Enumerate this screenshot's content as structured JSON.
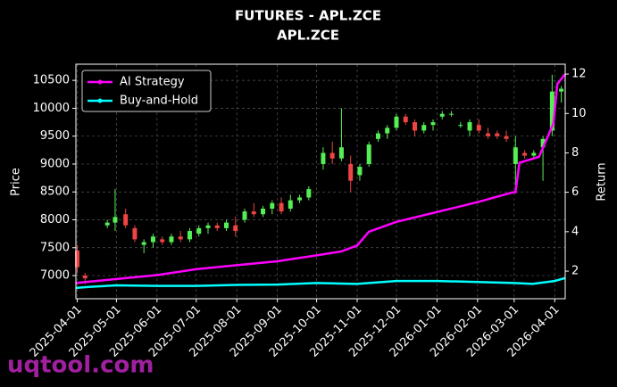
{
  "chart_data": {
    "type": "candlestick",
    "title": "FUTURES - APL.ZCE",
    "subtitle": "APL.ZCE",
    "ylabel": "Price",
    "y2label": "Return",
    "watermark": "uqtool.com",
    "grid": true,
    "legend": "upper left",
    "up_color": "#55ee55",
    "down_color": "#ee4444",
    "xlim": [
      "2025-03-31",
      "2026-04-09"
    ],
    "xticks": [
      "2025-04-01",
      "2025-05-01",
      "2025-06-01",
      "2025-07-01",
      "2025-08-01",
      "2025-09-01",
      "2025-10-01",
      "2025-11-01",
      "2025-12-01",
      "2026-01-01",
      "2026-02-01",
      "2026-03-01",
      "2026-04-01"
    ],
    "ylim": [
      6585,
      10790
    ],
    "yticks": [
      7000,
      7500,
      8000,
      8500,
      9000,
      9500,
      10000,
      10500
    ],
    "y2lim": [
      0.6,
      12.5
    ],
    "y2ticks": [
      2,
      4,
      6,
      8,
      10,
      12
    ],
    "x": [
      "2025-04-01",
      "2025-04-07",
      "2025-04-24",
      "2025-04-30",
      "2025-05-08",
      "2025-05-15",
      "2025-05-22",
      "2025-05-29",
      "2025-06-05",
      "2025-06-12",
      "2025-06-19",
      "2025-06-26",
      "2025-07-03",
      "2025-07-10",
      "2025-07-17",
      "2025-07-24",
      "2025-07-31",
      "2025-08-07",
      "2025-08-14",
      "2025-08-21",
      "2025-08-28",
      "2025-09-04",
      "2025-09-11",
      "2025-09-18",
      "2025-09-25",
      "2025-10-06",
      "2025-10-13",
      "2025-10-20",
      "2025-10-27",
      "2025-11-03",
      "2025-11-10",
      "2025-11-17",
      "2025-11-24",
      "2025-12-01",
      "2025-12-08",
      "2025-12-15",
      "2025-12-22",
      "2025-12-29",
      "2026-01-05",
      "2026-01-12",
      "2026-01-19",
      "2026-01-26",
      "2026-02-02",
      "2026-02-09",
      "2026-02-16",
      "2026-02-23",
      "2026-03-02",
      "2026-03-09",
      "2026-03-16",
      "2026-03-23",
      "2026-03-30",
      "2026-04-06"
    ],
    "open": [
      7450,
      7000,
      7900,
      7950,
      8100,
      7850,
      7550,
      7600,
      7650,
      7600,
      7700,
      7650,
      7750,
      7850,
      7900,
      7850,
      7900,
      8000,
      8150,
      8100,
      8200,
      8300,
      8200,
      8350,
      8400,
      9000,
      9200,
      9100,
      9000,
      8800,
      9000,
      9450,
      9550,
      9650,
      9850,
      9750,
      9600,
      9700,
      9850,
      9900,
      9700,
      9600,
      9700,
      9550,
      9550,
      9500,
      9000,
      9200,
      9150,
      9300,
      9600,
      10300
    ],
    "high": [
      7550,
      7050,
      8000,
      8550,
      8200,
      7900,
      7650,
      7750,
      7700,
      7750,
      7800,
      7850,
      7900,
      7950,
      7950,
      8000,
      8050,
      8200,
      8300,
      8250,
      8350,
      8400,
      8450,
      8450,
      8600,
      9300,
      9400,
      10000,
      9150,
      9000,
      9400,
      9600,
      9700,
      9900,
      9900,
      9800,
      9750,
      9800,
      9950,
      9950,
      9750,
      9800,
      9800,
      9650,
      9600,
      9600,
      9500,
      9250,
      9250,
      9500,
      10600,
      10400
    ],
    "low": [
      7050,
      6850,
      7850,
      7800,
      7850,
      7600,
      7400,
      7500,
      7550,
      7550,
      7600,
      7600,
      7700,
      7750,
      7800,
      7800,
      7700,
      7950,
      8050,
      8050,
      8100,
      8100,
      8150,
      8300,
      8350,
      8900,
      9000,
      9050,
      8500,
      8700,
      8950,
      9400,
      9450,
      9600,
      9700,
      9500,
      9550,
      9600,
      9800,
      9850,
      9650,
      9500,
      9550,
      9450,
      9450,
      9400,
      8600,
      9100,
      9100,
      8700,
      9500,
      10100
    ],
    "close": [
      7150,
      6950,
      7950,
      8050,
      7900,
      7650,
      7600,
      7700,
      7600,
      7700,
      7650,
      7800,
      7850,
      7900,
      7850,
      7950,
      7800,
      8150,
      8100,
      8200,
      8300,
      8150,
      8350,
      8400,
      8550,
      9200,
      9100,
      9300,
      8700,
      8950,
      9350,
      9550,
      9650,
      9850,
      9750,
      9600,
      9700,
      9750,
      9900,
      9900,
      9700,
      9750,
      9600,
      9500,
      9500,
      9450,
      9300,
      9150,
      9200,
      9450,
      10300,
      10350
    ],
    "series": [
      {
        "name": "AI Strategy",
        "color": "#ff00ff",
        "axis": "y2",
        "x": [
          "2025-03-31",
          "2025-05-01",
          "2025-06-01",
          "2025-07-01",
          "2025-08-01",
          "2025-09-01",
          "2025-10-01",
          "2025-10-20",
          "2025-11-01",
          "2025-11-10",
          "2025-12-01",
          "2026-01-01",
          "2026-02-01",
          "2026-02-28",
          "2026-03-02",
          "2026-03-05",
          "2026-03-20",
          "2026-03-31",
          "2026-04-03",
          "2026-04-09"
        ],
        "values": [
          1.4,
          1.6,
          1.8,
          2.1,
          2.3,
          2.5,
          2.8,
          3.0,
          3.3,
          4.0,
          4.5,
          5.0,
          5.5,
          6.0,
          6.0,
          7.5,
          7.8,
          9.5,
          11.5,
          12.0
        ]
      },
      {
        "name": "Buy-and-Hold",
        "color": "#00ffff",
        "axis": "y2",
        "x": [
          "2025-03-31",
          "2025-04-10",
          "2025-05-01",
          "2025-06-01",
          "2025-07-01",
          "2025-08-01",
          "2025-09-01",
          "2025-10-01",
          "2025-11-01",
          "2025-12-01",
          "2026-01-01",
          "2026-02-01",
          "2026-03-01",
          "2026-03-15",
          "2026-04-01",
          "2026-04-09"
        ],
        "values": [
          1.15,
          1.2,
          1.28,
          1.25,
          1.25,
          1.3,
          1.32,
          1.4,
          1.35,
          1.5,
          1.5,
          1.45,
          1.4,
          1.35,
          1.5,
          1.65
        ]
      }
    ]
  }
}
